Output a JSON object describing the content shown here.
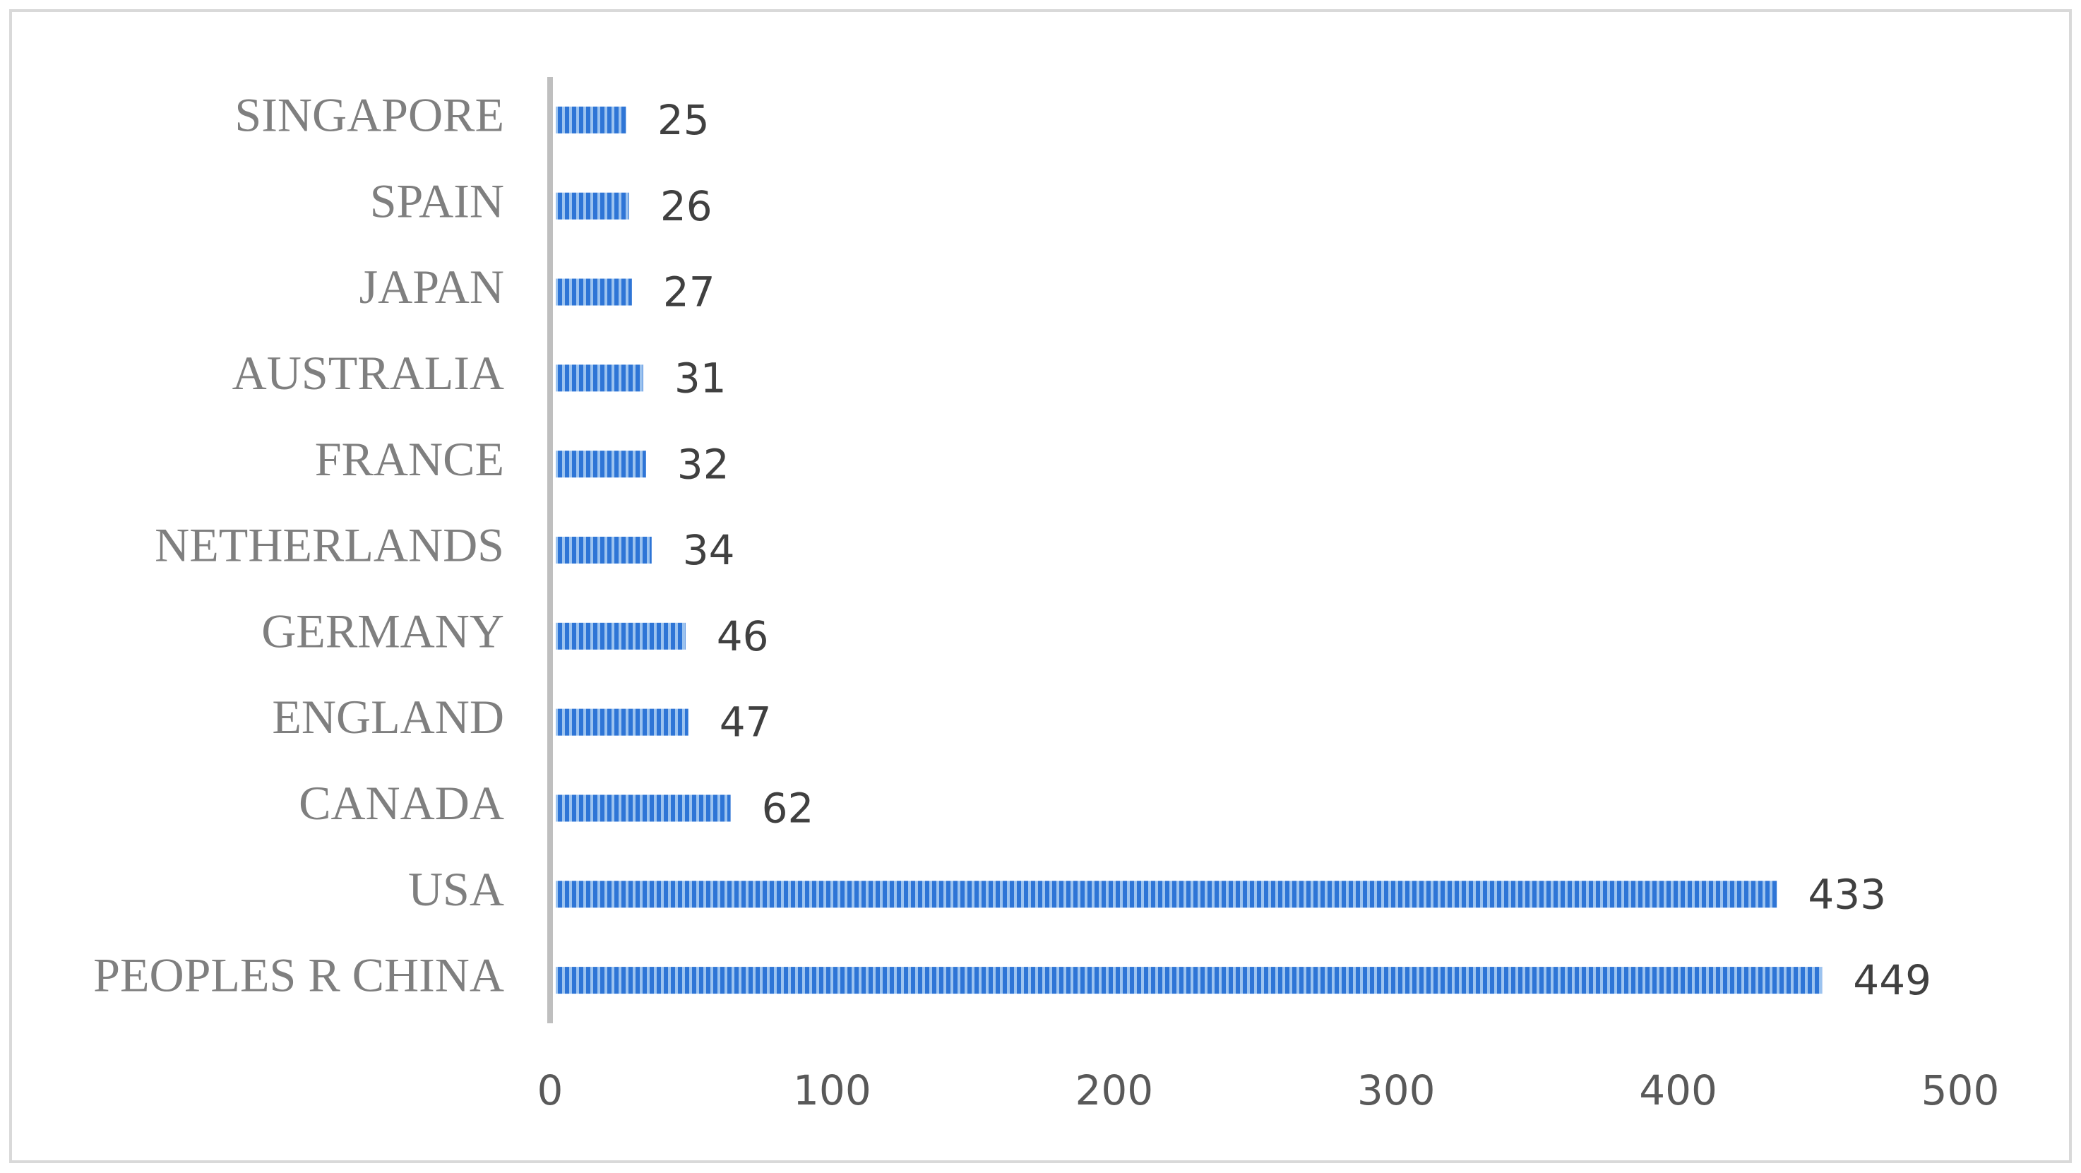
{
  "chart_data": {
    "type": "bar",
    "orientation": "horizontal",
    "categories": [
      "PEOPLES R CHINA",
      "USA",
      "CANADA",
      "ENGLAND",
      "GERMANY",
      "NETHERLANDS",
      "FRANCE",
      "AUSTRALIA",
      "JAPAN",
      "SPAIN",
      "SINGAPORE"
    ],
    "values": [
      449,
      433,
      62,
      47,
      46,
      34,
      32,
      31,
      27,
      26,
      25
    ],
    "color": "#2e75d6",
    "xlim": [
      0,
      500
    ],
    "xticks": [
      0,
      100,
      200,
      300,
      400,
      500
    ],
    "grid": false
  }
}
